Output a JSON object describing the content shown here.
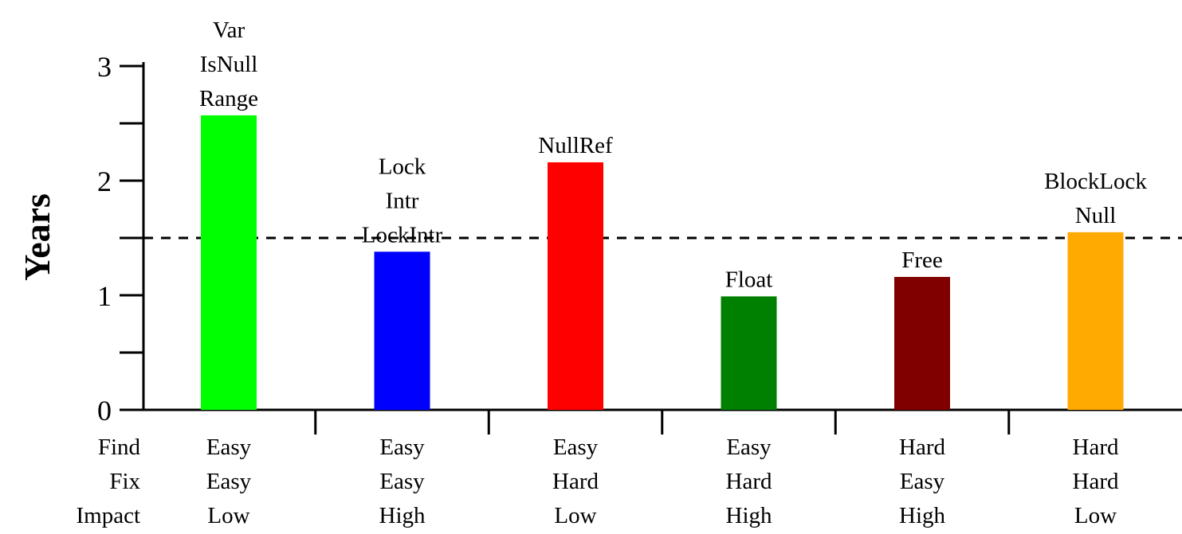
{
  "chart_data": {
    "type": "bar",
    "title": "",
    "xlabel": "",
    "ylabel": "Years",
    "ylim": [
      0,
      3
    ],
    "yticks": [
      0,
      1,
      2,
      3
    ],
    "reference_line": {
      "value": 1.5,
      "style": "dashed"
    },
    "categories": [
      "Var IsNull Range",
      "Lock Intr LockIntr",
      "NullRef",
      "Float",
      "Free",
      "BlockLock Null"
    ],
    "values": [
      2.57,
      1.38,
      2.16,
      0.99,
      1.16,
      1.55
    ],
    "colors": [
      "#00ff00",
      "#0000ff",
      "#ff0000",
      "#008000",
      "#800000",
      "#ffaa00"
    ],
    "bar_labels": [
      [
        "Var",
        "IsNull",
        "Range"
      ],
      [
        "Lock",
        "Intr",
        "LockIntr"
      ],
      [
        "NullRef"
      ],
      [
        "Float"
      ],
      [
        "Free"
      ],
      [
        "BlockLock",
        "Null"
      ]
    ],
    "table": {
      "row_labels": [
        "Find",
        "Fix",
        "Impact"
      ],
      "rows": [
        [
          "Easy",
          "Easy",
          "Easy",
          "Easy",
          "Hard",
          "Hard"
        ],
        [
          "Easy",
          "Easy",
          "Hard",
          "Hard",
          "Easy",
          "Hard"
        ],
        [
          "Low",
          "High",
          "Low",
          "High",
          "High",
          "Low"
        ]
      ]
    },
    "grid": false,
    "legend": "none"
  }
}
